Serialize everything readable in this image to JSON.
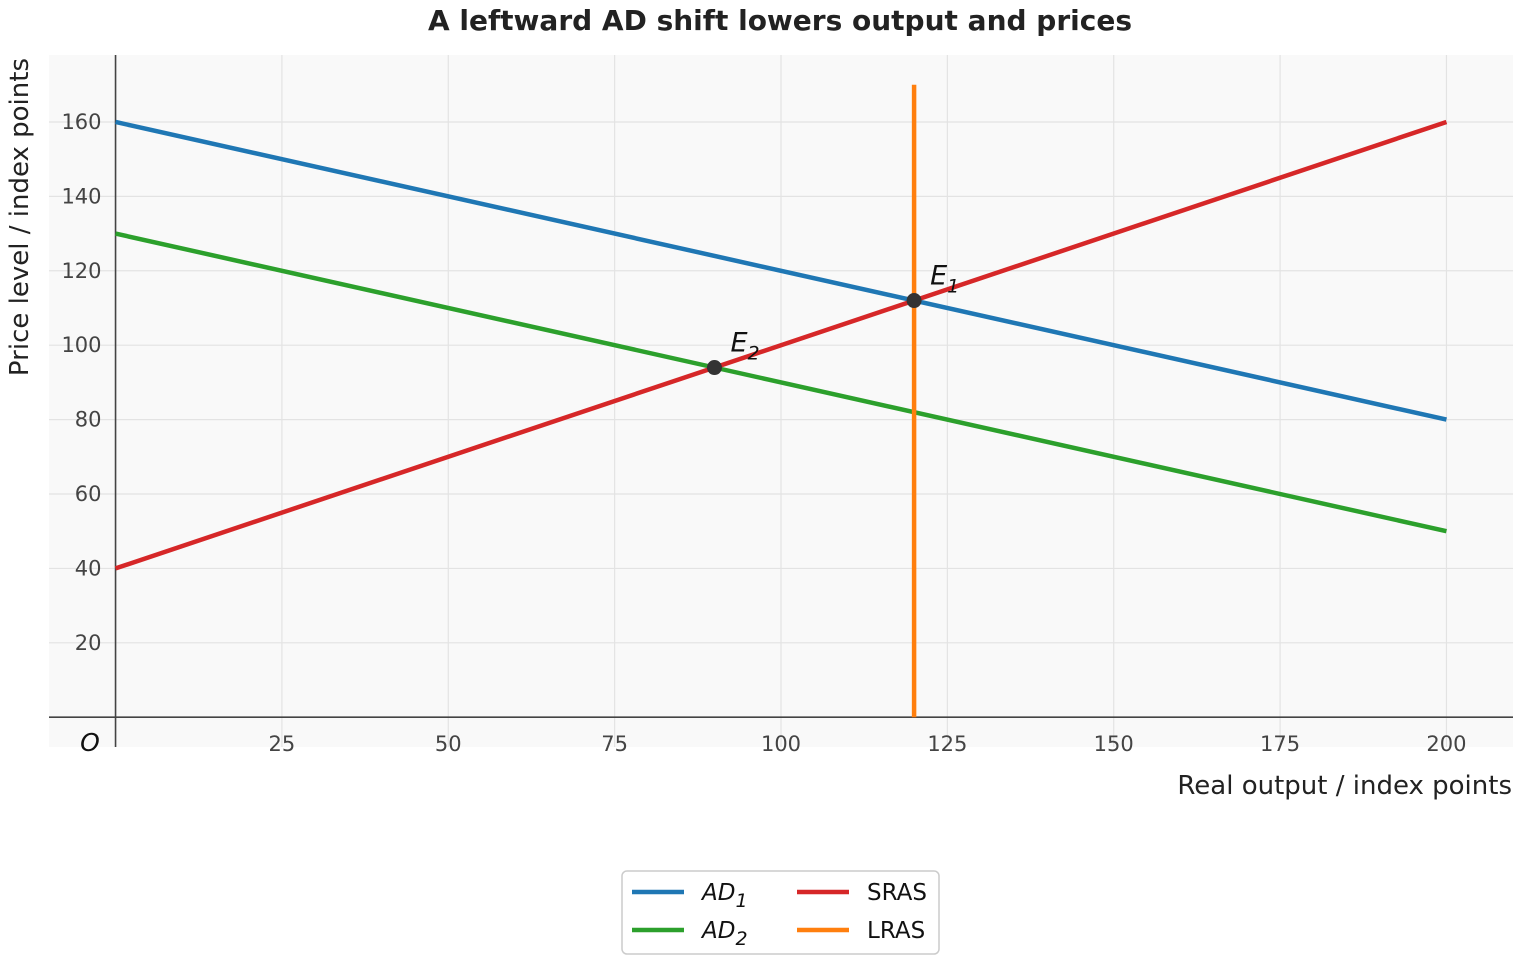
{
  "chart_data": {
    "type": "line",
    "title": "A leftward AD shift lowers output and prices",
    "xlabel": "Real output / index points",
    "ylabel": "Price level / index points",
    "origin_label": "O",
    "xlim": [
      -10,
      210
    ],
    "ylim": [
      -8,
      178
    ],
    "x_ticks": [
      25,
      50,
      75,
      100,
      125,
      150,
      175,
      200
    ],
    "y_ticks": [
      20,
      40,
      60,
      80,
      100,
      120,
      140,
      160
    ],
    "grid": true,
    "legend_position": "bottom-center",
    "series": [
      {
        "key": "ad1",
        "name": "AD",
        "name_sub": "1",
        "italic": true,
        "color": "#1f77b4",
        "x": [
          0,
          200
        ],
        "y": [
          160,
          80
        ]
      },
      {
        "key": "ad2",
        "name": "AD",
        "name_sub": "2",
        "italic": true,
        "color": "#2ca02c",
        "x": [
          0,
          200
        ],
        "y": [
          130,
          50
        ]
      },
      {
        "key": "sras",
        "name": "SRAS",
        "name_sub": "",
        "italic": false,
        "color": "#d62728",
        "x": [
          0,
          200
        ],
        "y": [
          40,
          160
        ]
      },
      {
        "key": "lras",
        "name": "LRAS",
        "name_sub": "",
        "italic": false,
        "color": "#ff7f0e",
        "x": [
          120,
          120
        ],
        "y": [
          0,
          170
        ]
      }
    ],
    "points": [
      {
        "key": "e1",
        "label": "E",
        "label_sub": "1",
        "x": 120,
        "y": 112
      },
      {
        "key": "e2",
        "label": "E",
        "label_sub": "2",
        "x": 90,
        "y": 94
      }
    ]
  }
}
